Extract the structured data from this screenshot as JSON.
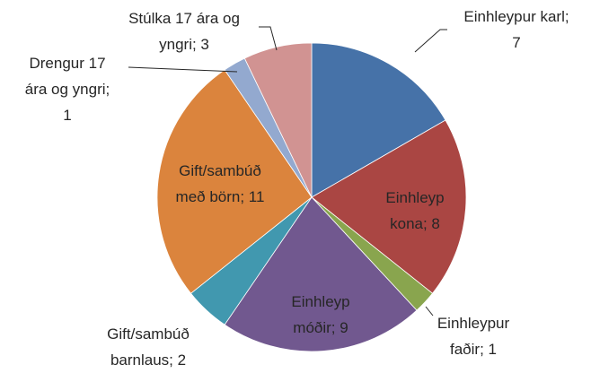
{
  "chart_data": {
    "type": "pie",
    "values": [
      7,
      8,
      1,
      9,
      2,
      11,
      1,
      3
    ],
    "value_labels": [
      "Einhleypur karl; 7",
      "Einhleyp kona; 8",
      "Einhleypur faðir; 1",
      "Einhleyp móðir; 9",
      "Gift/sambúð barnlaus; 2",
      "Gift/sambúð með börn; 11",
      "Drengur 17 ára og yngri; 1",
      "Stúlka 17 ára og yngri; 3"
    ],
    "colors": [
      "#4672a8",
      "#aa4643",
      "#89a54e",
      "#71588f",
      "#4198af",
      "#db843d",
      "#93a9cf",
      "#d19392"
    ]
  }
}
